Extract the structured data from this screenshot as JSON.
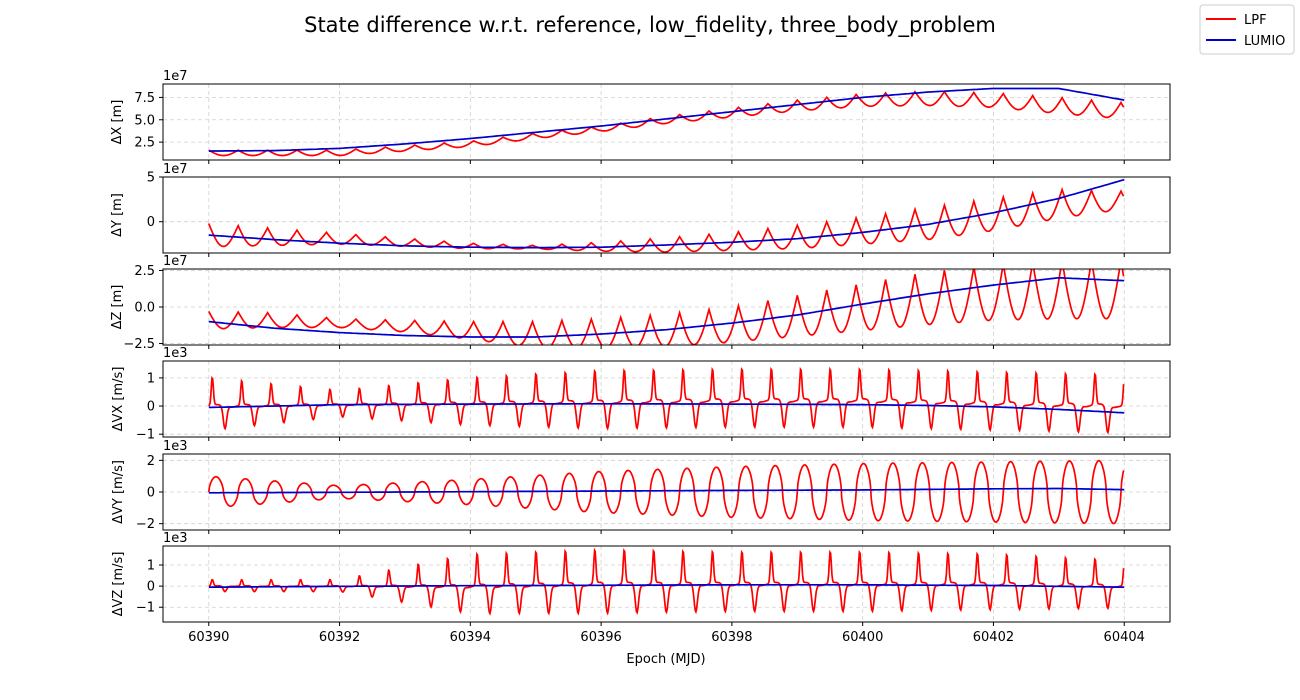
{
  "chart_data": {
    "type": "line",
    "title": "State difference w.r.t. reference, low_fidelity, three_body_problem",
    "xlabel": "Epoch (MJD)",
    "xlim": [
      60389.3,
      60404.7
    ],
    "xticks": [
      60390,
      60392,
      60394,
      60396,
      60398,
      60400,
      60402,
      60404
    ],
    "legend": {
      "placement": "top-right",
      "entries": [
        {
          "name": "LPF",
          "color": "#ff0000"
        },
        {
          "name": "LUMIO",
          "color": "#0000cc"
        }
      ]
    },
    "grid": true,
    "panels": [
      {
        "ylabel": "ΔX [m]",
        "multiplier": "1e7",
        "ylim": [
          0.5,
          9.0
        ],
        "yticks": [
          2.5,
          5.0,
          7.5
        ],
        "ytick_labels": [
          "2.5",
          "5.0",
          "7.5"
        ],
        "lumio": {
          "x": [
            60390,
            60391,
            60392,
            60393,
            60394,
            60395,
            60396,
            60397,
            60398,
            60399,
            60400,
            60401,
            60402,
            60403,
            60404
          ],
          "y": [
            1.5,
            1.55,
            1.8,
            2.3,
            2.9,
            3.6,
            4.3,
            5.1,
            5.9,
            6.7,
            7.5,
            8.1,
            8.5,
            8.5,
            7.2
          ]
        },
        "lpf": {
          "x": [
            60390,
            60392,
            60394,
            60395,
            60396,
            60397,
            60398,
            60399,
            60400,
            60401,
            60402,
            60403,
            60404
          ],
          "base": [
            1.3,
            1.3,
            2.3,
            3.2,
            4.0,
            5.0,
            5.8,
            6.6,
            7.2,
            7.4,
            7.2,
            6.6,
            6.0
          ],
          "amp": [
            0.3,
            0.3,
            0.3,
            0.3,
            0.3,
            0.4,
            0.5,
            0.6,
            0.7,
            0.8,
            0.8,
            0.9,
            0.9
          ],
          "period": 0.45,
          "shape": "cusp-up"
        }
      },
      {
        "ylabel": "ΔY [m]",
        "multiplier": "1e7",
        "ylim": [
          -3.5,
          5.0
        ],
        "yticks": [
          0,
          5
        ],
        "ytick_labels": [
          "0",
          "5"
        ],
        "lumio": {
          "x": [
            60390,
            60391,
            60392,
            60393,
            60394,
            60395,
            60396,
            60397,
            60398,
            60399,
            60400,
            60401,
            60402,
            60403,
            60404
          ],
          "y": [
            -1.5,
            -2.0,
            -2.4,
            -2.7,
            -2.85,
            -2.9,
            -2.85,
            -2.6,
            -2.3,
            -1.9,
            -1.2,
            -0.3,
            1.0,
            2.6,
            4.7
          ]
        },
        "lpf": {
          "x": [
            60390,
            60392,
            60394,
            60395,
            60396,
            60397,
            60398,
            60399,
            60400,
            60401,
            60402,
            60403,
            60404
          ],
          "base": [
            -1.5,
            -1.9,
            -2.7,
            -2.85,
            -2.8,
            -2.6,
            -2.2,
            -1.7,
            -1.0,
            -0.2,
            0.8,
            2.0,
            2.4
          ],
          "amp": [
            1.3,
            0.6,
            0.3,
            0.2,
            0.5,
            0.8,
            1.0,
            1.3,
            1.5,
            1.8,
            1.8,
            1.6,
            1.0
          ],
          "period": 0.45,
          "shape": "cusp-up"
        }
      },
      {
        "ylabel": "ΔZ [m]",
        "multiplier": "1e7",
        "ylim": [
          -2.6,
          2.6
        ],
        "yticks": [
          -2.5,
          0.0,
          2.5
        ],
        "ytick_labels": [
          "−2.5",
          "0.0",
          "2.5"
        ],
        "lumio": {
          "x": [
            60390,
            60391,
            60392,
            60393,
            60394,
            60395,
            60396,
            60397,
            60398,
            60399,
            60400,
            60401,
            60402,
            60403,
            60404
          ],
          "y": [
            -1.0,
            -1.45,
            -1.75,
            -1.95,
            -2.05,
            -2.05,
            -1.85,
            -1.55,
            -1.1,
            -0.55,
            0.2,
            0.9,
            1.5,
            2.0,
            1.8
          ]
        },
        "lpf": {
          "x": [
            60390,
            60391,
            60392,
            60393,
            60394,
            60395,
            60396,
            60397,
            60398,
            60399,
            60400,
            60401,
            60402,
            60403,
            60404
          ],
          "base": [
            -0.9,
            -0.9,
            -1.1,
            -1.3,
            -1.6,
            -1.9,
            -1.8,
            -1.6,
            -1.2,
            -0.6,
            0.0,
            0.6,
            1.0,
            1.2,
            1.2
          ],
          "amp": [
            0.6,
            0.5,
            0.3,
            0.4,
            0.6,
            0.9,
            1.0,
            1.1,
            1.2,
            1.4,
            1.6,
            1.8,
            1.9,
            2.0,
            2.0
          ],
          "period": 0.45,
          "shape": "cusp-up"
        }
      },
      {
        "ylabel": "ΔVX [m/s]",
        "multiplier": "1e3",
        "ylim": [
          -1.1,
          1.6
        ],
        "yticks": [
          -1,
          0,
          1
        ],
        "ytick_labels": [
          "−1",
          "0",
          "1"
        ],
        "lumio": {
          "x": [
            60390,
            60392,
            60394,
            60396,
            60398,
            60400,
            60401,
            60402,
            60403,
            60404
          ],
          "y": [
            -0.05,
            0.05,
            0.07,
            0.08,
            0.07,
            0.05,
            0.02,
            -0.03,
            -0.12,
            -0.24
          ]
        },
        "lpf": {
          "x": [
            60390,
            60392,
            60394,
            60396,
            60398,
            60400,
            60402,
            60404
          ],
          "base": [
            0.0,
            0.05,
            0.1,
            0.15,
            0.2,
            0.2,
            0.1,
            0.0
          ],
          "amp": [
            1.0,
            0.5,
            0.9,
            1.1,
            1.1,
            1.1,
            1.1,
            1.1
          ],
          "period": 0.45,
          "shape": "spike"
        }
      },
      {
        "ylabel": "ΔVY [m/s]",
        "multiplier": "1e3",
        "ylim": [
          -2.4,
          2.4
        ],
        "yticks": [
          -2,
          0,
          2
        ],
        "ytick_labels": [
          "−2",
          "0",
          "2"
        ],
        "lumio": {
          "x": [
            60390,
            60392,
            60394,
            60396,
            60398,
            60400,
            60402,
            60403,
            60404
          ],
          "y": [
            -0.05,
            -0.02,
            0.02,
            0.06,
            0.1,
            0.13,
            0.2,
            0.22,
            0.15
          ]
        },
        "lpf": {
          "x": [
            60390,
            60392,
            60394,
            60396,
            60398,
            60400,
            60402,
            60404
          ],
          "base": [
            0.0,
            0.0,
            0.0,
            0.0,
            0.0,
            0.0,
            0.0,
            0.0
          ],
          "amp": [
            1.0,
            0.4,
            0.8,
            1.3,
            1.6,
            1.8,
            1.9,
            2.0
          ],
          "period": 0.45,
          "shape": "sine"
        }
      },
      {
        "ylabel": "ΔVZ [m/s]",
        "multiplier": "1e3",
        "ylim": [
          -1.7,
          1.9
        ],
        "yticks": [
          -1,
          0,
          1
        ],
        "ytick_labels": [
          "−1",
          "0",
          "1"
        ],
        "lumio": {
          "x": [
            60390,
            60392,
            60394,
            60396,
            60398,
            60400,
            60402,
            60404
          ],
          "y": [
            -0.05,
            -0.01,
            0.02,
            0.04,
            0.06,
            0.06,
            0.03,
            -0.05
          ]
        },
        "lpf": {
          "x": [
            60390,
            60392,
            60394,
            60396,
            60398,
            60400,
            60402,
            60404
          ],
          "base": [
            0.0,
            0.0,
            0.0,
            0.1,
            0.1,
            0.1,
            0.1,
            0.0
          ],
          "amp": [
            0.3,
            0.3,
            1.5,
            1.6,
            1.5,
            1.5,
            1.4,
            1.2
          ],
          "period": 0.45,
          "shape": "spike"
        }
      }
    ]
  }
}
